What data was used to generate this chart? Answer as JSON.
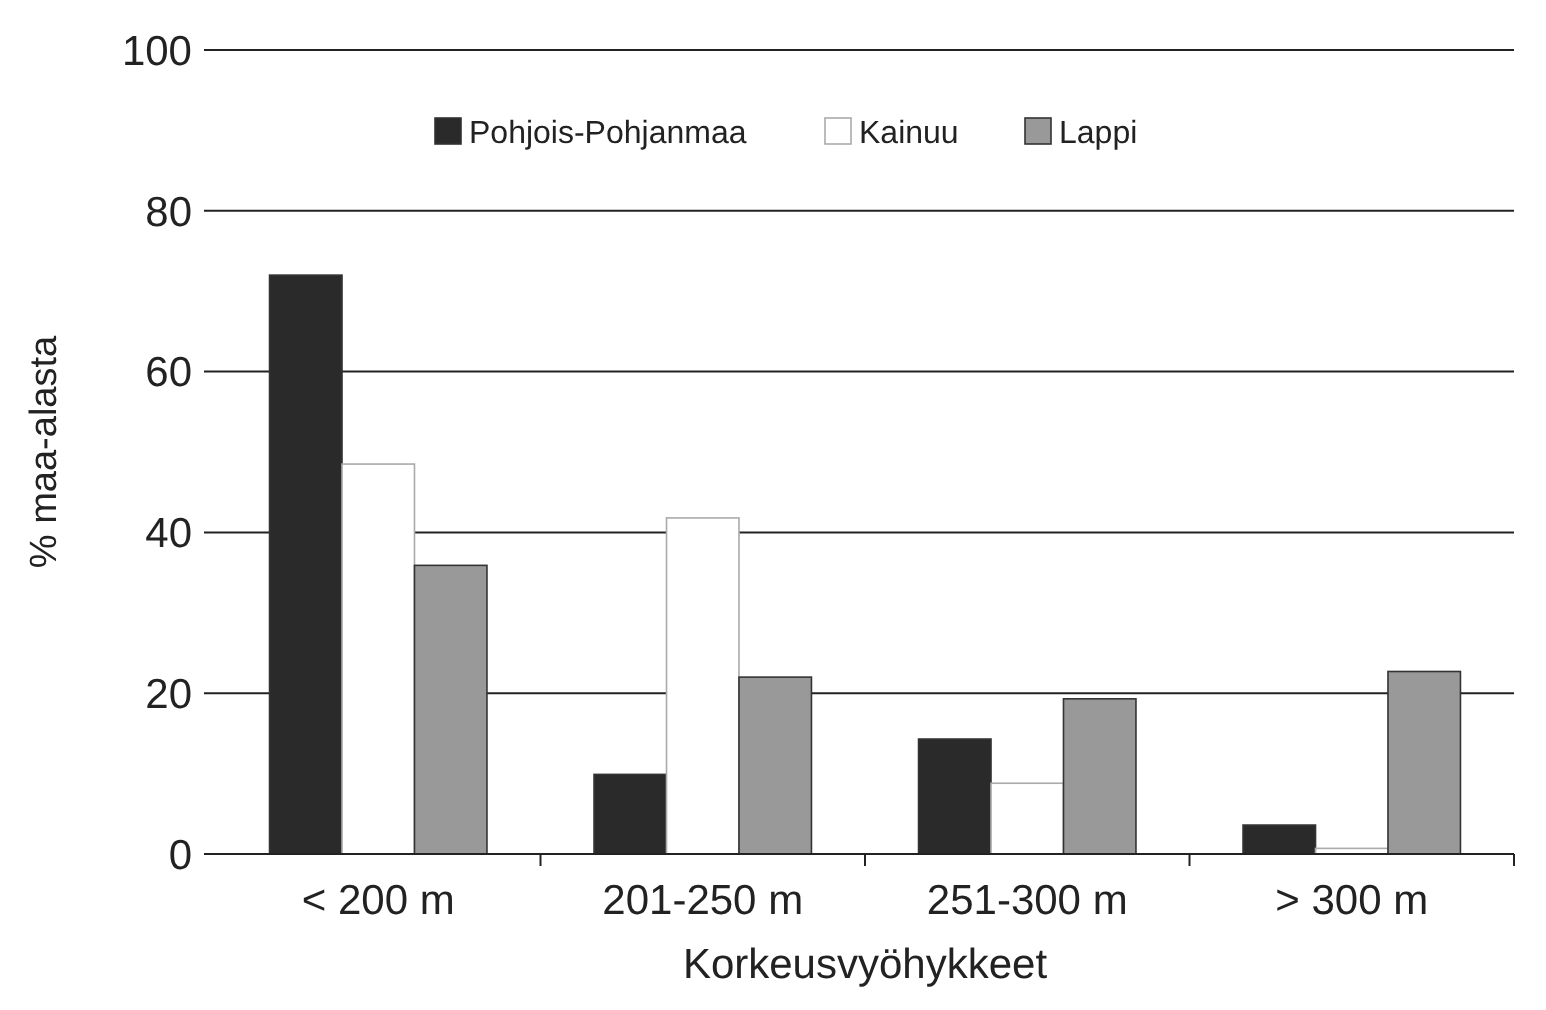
{
  "chart_data": {
    "type": "bar",
    "xlabel": "Korkeusvyöhykkeet",
    "ylabel": "% maa-alasta",
    "categories": [
      "< 200 m",
      "201-250 m",
      "251-300 m",
      "> 300 m"
    ],
    "series": [
      {
        "name": "Pohjois-Pohjanmaa",
        "color": "#2a2a2a",
        "values": [
          72.0,
          9.9,
          14.3,
          3.6
        ]
      },
      {
        "name": "Kainuu",
        "color": "#ffffff",
        "values": [
          48.5,
          41.8,
          8.8,
          0.7
        ]
      },
      {
        "name": "Lappi",
        "color": "#999999",
        "values": [
          35.9,
          22.0,
          19.3,
          22.7
        ]
      }
    ],
    "ylim": [
      0,
      100
    ],
    "yticks": [
      0,
      20,
      40,
      60,
      80,
      100
    ],
    "grid": "y",
    "legend": "top"
  }
}
